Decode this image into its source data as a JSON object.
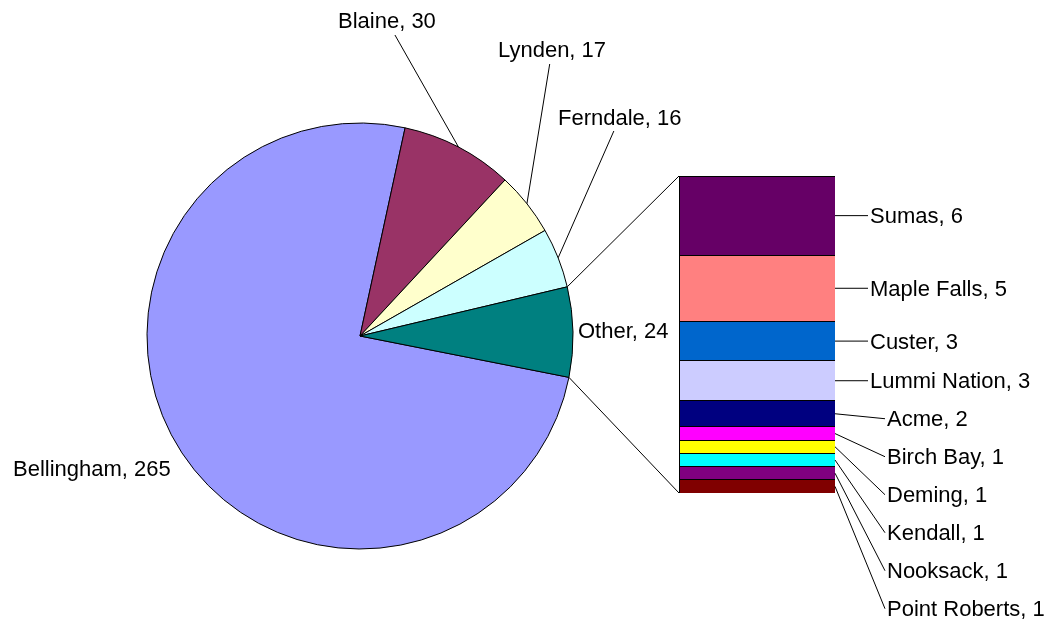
{
  "chart_data": [
    {
      "type": "pie",
      "categories": [
        null,
        null,
        null,
        null,
        null
      ],
      "values": [
        265,
        30,
        17,
        16,
        24
      ],
      "colors": [
        "#9999ff",
        "#993366",
        "#ffffcc",
        "#ccffff",
        "#008080"
      ],
      "value_labels": [
        "Bellingham, 265",
        "Blaine, 30",
        "Lynden, 17",
        "Ferndale, 16",
        "Other, 24"
      ]
    },
    {
      "type": "bar",
      "stacked": true,
      "categories": [
        null
      ],
      "series": [
        {
          "color": "#800000",
          "values": [
            1
          ],
          "value_labels": [
            "Point Roberts, 1"
          ]
        },
        {
          "color": "#800080",
          "values": [
            1
          ],
          "value_labels": [
            "Nooksack, 1"
          ]
        },
        {
          "color": "#00ffff",
          "values": [
            1
          ],
          "value_labels": [
            "Kendall, 1"
          ]
        },
        {
          "color": "#ffff00",
          "values": [
            1
          ],
          "value_labels": [
            "Deming, 1"
          ]
        },
        {
          "color": "#ff00ff",
          "values": [
            1
          ],
          "value_labels": [
            "Birch Bay, 1"
          ]
        },
        {
          "color": "#000080",
          "values": [
            2
          ],
          "value_labels": [
            "Acme, 2"
          ]
        },
        {
          "color": "#ccccff",
          "values": [
            3
          ],
          "value_labels": [
            "Lummi Nation, 3"
          ]
        },
        {
          "color": "#0066cc",
          "values": [
            3
          ],
          "value_labels": [
            "Custer, 3"
          ]
        },
        {
          "color": "#ff8080",
          "values": [
            5
          ],
          "value_labels": [
            "Maple Falls, 5"
          ]
        },
        {
          "color": "#660066",
          "values": [
            6
          ],
          "value_labels": [
            "Sumas, 6"
          ]
        }
      ]
    }
  ]
}
